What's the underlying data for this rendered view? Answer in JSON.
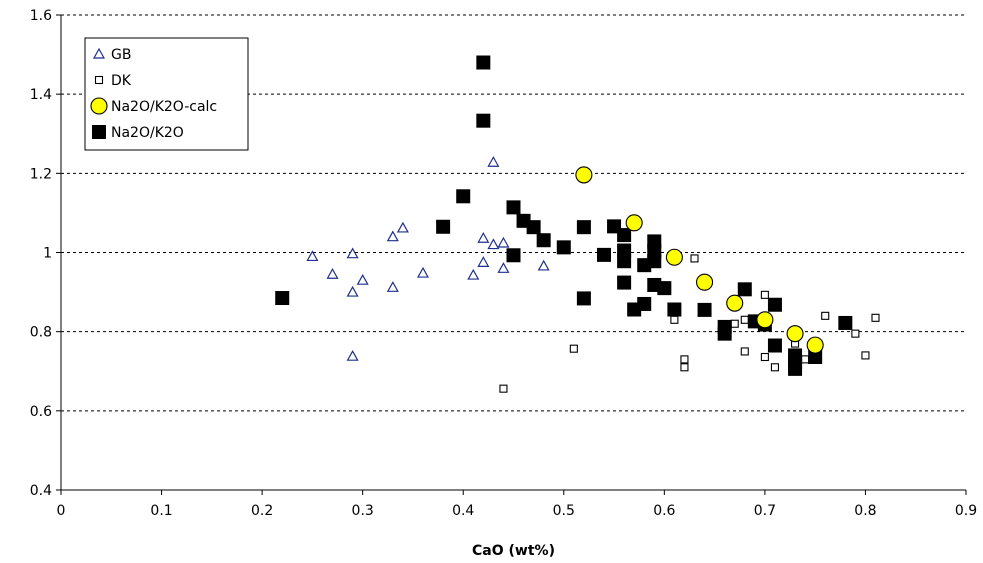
{
  "chart_data": {
    "type": "scatter",
    "title": "",
    "xlabel": "CaO (wt%)",
    "ylabel": "",
    "xlim": [
      0,
      0.9
    ],
    "ylim": [
      0.4,
      1.6
    ],
    "x_ticks": [
      0,
      0.1,
      0.2,
      0.3,
      0.4,
      0.5,
      0.6,
      0.7,
      0.8,
      0.9
    ],
    "x_tick_labels": [
      "0",
      "0.1",
      "0.2",
      "0.3",
      "0.4",
      "0.5",
      "0.6",
      "0.7",
      "0.8",
      "0.9"
    ],
    "y_ticks": [
      0.4,
      0.6,
      0.8,
      1.0,
      1.2,
      1.4,
      1.6
    ],
    "y_tick_labels": [
      "0.4",
      "0.6",
      "0.8",
      "1",
      "1.2",
      "1.4",
      "1.6"
    ],
    "grid": "horizontal-dashed",
    "legend_position": "top-left",
    "series": [
      {
        "name": "GB",
        "marker": "triangle-open",
        "color": "#1f2f8f",
        "points": [
          [
            0.25,
            0.99
          ],
          [
            0.27,
            0.945
          ],
          [
            0.29,
            0.997
          ],
          [
            0.29,
            0.9
          ],
          [
            0.29,
            0.738
          ],
          [
            0.3,
            0.93
          ],
          [
            0.33,
            1.04
          ],
          [
            0.33,
            0.912
          ],
          [
            0.34,
            1.062
          ],
          [
            0.36,
            0.948
          ],
          [
            0.41,
            0.943
          ],
          [
            0.42,
            1.036
          ],
          [
            0.42,
            0.975
          ],
          [
            0.43,
            1.228
          ],
          [
            0.43,
            1.02
          ],
          [
            0.44,
            1.024
          ],
          [
            0.44,
            0.96
          ],
          [
            0.48,
            0.966
          ]
        ]
      },
      {
        "name": "DK",
        "marker": "square-open",
        "color": "#000000",
        "points": [
          [
            0.44,
            0.656
          ],
          [
            0.51,
            0.757
          ],
          [
            0.61,
            0.83
          ],
          [
            0.62,
            0.73
          ],
          [
            0.62,
            0.71
          ],
          [
            0.63,
            0.985
          ],
          [
            0.67,
            0.82
          ],
          [
            0.68,
            0.75
          ],
          [
            0.68,
            0.83
          ],
          [
            0.7,
            0.893
          ],
          [
            0.7,
            0.736
          ],
          [
            0.71,
            0.71
          ],
          [
            0.73,
            0.77
          ],
          [
            0.74,
            0.73
          ],
          [
            0.76,
            0.84
          ],
          [
            0.79,
            0.795
          ],
          [
            0.8,
            0.74
          ],
          [
            0.81,
            0.835
          ]
        ]
      },
      {
        "name": "Na2O/K2O-calc",
        "marker": "circle-filled",
        "color": "#ffff00",
        "points": [
          [
            0.52,
            1.196
          ],
          [
            0.57,
            1.075
          ],
          [
            0.61,
            0.988
          ],
          [
            0.64,
            0.925
          ],
          [
            0.67,
            0.872
          ],
          [
            0.7,
            0.83
          ],
          [
            0.73,
            0.795
          ],
          [
            0.75,
            0.766
          ]
        ]
      },
      {
        "name": "Na2O/K2O",
        "marker": "square-filled",
        "color": "#000000",
        "points": [
          [
            0.22,
            0.885
          ],
          [
            0.38,
            1.065
          ],
          [
            0.4,
            1.142
          ],
          [
            0.42,
            1.48
          ],
          [
            0.42,
            1.333
          ],
          [
            0.45,
            1.114
          ],
          [
            0.45,
            0.993
          ],
          [
            0.46,
            1.08
          ],
          [
            0.47,
            1.064
          ],
          [
            0.48,
            1.031
          ],
          [
            0.5,
            1.013
          ],
          [
            0.52,
            1.064
          ],
          [
            0.52,
            0.884
          ],
          [
            0.54,
            0.994
          ],
          [
            0.55,
            1.066
          ],
          [
            0.56,
            1.044
          ],
          [
            0.56,
            1.005
          ],
          [
            0.56,
            0.978
          ],
          [
            0.56,
            0.924
          ],
          [
            0.57,
            0.856
          ],
          [
            0.58,
            0.968
          ],
          [
            0.58,
            0.87
          ],
          [
            0.59,
            1.028
          ],
          [
            0.59,
            1.004
          ],
          [
            0.59,
            0.978
          ],
          [
            0.59,
            0.918
          ],
          [
            0.6,
            0.91
          ],
          [
            0.61,
            0.856
          ],
          [
            0.64,
            0.855
          ],
          [
            0.66,
            0.812
          ],
          [
            0.66,
            0.795
          ],
          [
            0.68,
            0.907
          ],
          [
            0.69,
            0.826
          ],
          [
            0.7,
            0.818
          ],
          [
            0.71,
            0.868
          ],
          [
            0.71,
            0.765
          ],
          [
            0.73,
            0.74
          ],
          [
            0.73,
            0.72
          ],
          [
            0.73,
            0.706
          ],
          [
            0.75,
            0.736
          ],
          [
            0.78,
            0.822
          ]
        ]
      }
    ]
  }
}
